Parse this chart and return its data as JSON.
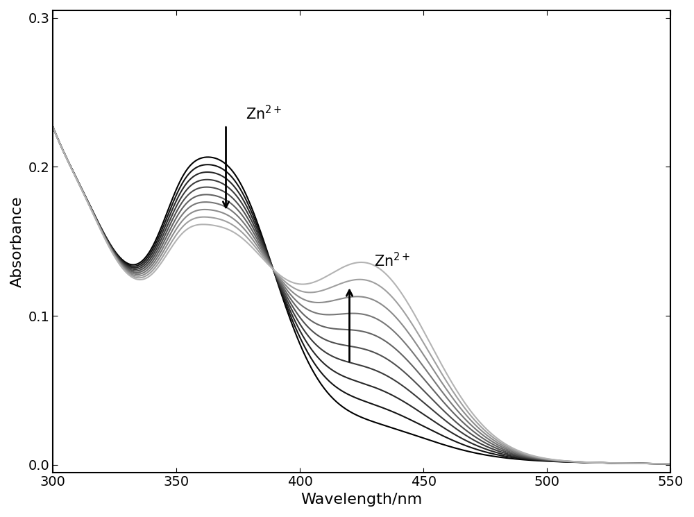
{
  "x_min": 300,
  "x_max": 550,
  "y_min": -0.005,
  "y_max": 0.305,
  "x_ticks": [
    300,
    350,
    400,
    450,
    500,
    550
  ],
  "y_ticks": [
    0.0,
    0.1,
    0.2,
    0.3
  ],
  "xlabel": "Wavelength/nm",
  "ylabel": "Absorbance",
  "n_curves": 10,
  "background": "#ffffff",
  "figsize": [
    10.0,
    7.45
  ],
  "dpi": 100
}
